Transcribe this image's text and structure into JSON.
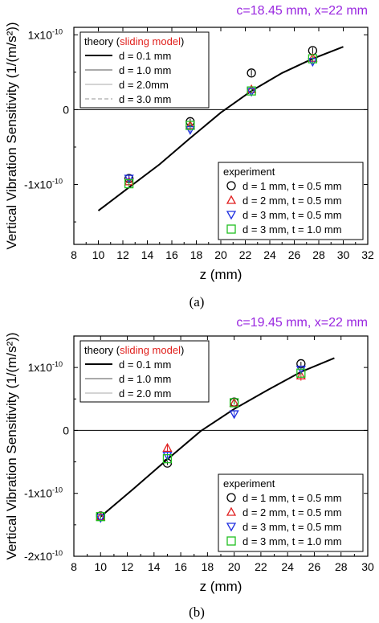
{
  "chart_data": [
    {
      "type": "line",
      "caption": "(a)",
      "condition": "c=18.45 mm, x=22 mm",
      "condition_color": "#9a28e0",
      "xlabel": "z (mm)",
      "ylabel": "Vertical Vibration Sensitivity (1/(m/s²))",
      "xlim": [
        8,
        32
      ],
      "ylim": [
        -1.8e-10,
        1.1e-10
      ],
      "xticks": [
        8,
        10,
        12,
        14,
        16,
        18,
        20,
        22,
        24,
        26,
        28,
        30,
        32
      ],
      "yticks": [
        {
          "value": 1e-10,
          "label": "1x10"
        },
        {
          "value": 0,
          "label": "0"
        },
        {
          "value": -1e-10,
          "label": "-1x10"
        }
      ],
      "theory_legend": {
        "title_prefix": "theory (",
        "title_highlight": "sliding model",
        "title_suffix": ")",
        "highlight_color": "#e0201c",
        "position": "top-left"
      },
      "theory_series": [
        {
          "name": "d = 0.1 mm",
          "color": "#000000",
          "dash": "none",
          "width": 2,
          "x": [
            10,
            12.5,
            15,
            17.5,
            20,
            22.5,
            25,
            27.5,
            30
          ],
          "y": [
            -1.35e-10,
            -1.04e-10,
            -7.3e-11,
            -3.8e-11,
            -4e-12,
            2.5e-11,
            4.9e-11,
            6.8e-11,
            8.4e-11
          ]
        },
        {
          "name": "d = 1.0 mm",
          "color": "#777777",
          "dash": "none",
          "width": 1.2,
          "x": [],
          "y": []
        },
        {
          "name": "d = 2.0mm",
          "color": "#bbbbbb",
          "dash": "none",
          "width": 1.2,
          "x": [],
          "y": []
        },
        {
          "name": "d = 3.0 mm",
          "color": "#aaaaaa",
          "dash": "5,3",
          "width": 1.2,
          "x": [],
          "y": []
        }
      ],
      "experiment_legend": {
        "title": "experiment",
        "position": "bottom-right"
      },
      "experiment_series": [
        {
          "name": "d = 1 mm, t = 0.5 mm",
          "marker": "circle",
          "color": "#000000",
          "x": [
            12.5,
            17.5,
            22.5,
            27.5
          ],
          "y": [
            -9.2e-11,
            -1.6e-11,
            4.9e-11,
            7.9e-11
          ],
          "err": [
            4e-12,
            4e-12,
            4e-12,
            4e-12
          ]
        },
        {
          "name": "d = 2 mm, t = 0.5 mm",
          "marker": "triangle-up",
          "color": "#e02020",
          "x": [
            12.5,
            17.5,
            22.5,
            27.5
          ],
          "y": [
            -9.6e-11,
            -2.1e-11,
            2.7e-11,
            6.9e-11
          ],
          "err": [
            3e-12,
            3e-12,
            3e-12,
            3e-12
          ]
        },
        {
          "name": "d = 3 mm, t = 0.5 mm",
          "marker": "triangle-down",
          "color": "#2030e0",
          "x": [
            12.5,
            17.5,
            22.5,
            27.5
          ],
          "y": [
            -9.2e-11,
            -2.7e-11,
            2.4e-11,
            6.4e-11
          ],
          "err": [
            3e-12,
            3e-12,
            3e-12,
            3e-12
          ]
        },
        {
          "name": "d = 3 mm, t = 1.0 mm",
          "marker": "square",
          "color": "#20c020",
          "x": [
            12.5,
            17.5,
            22.5,
            27.5
          ],
          "y": [
            -9.9e-11,
            -2.1e-11,
            2.5e-11,
            6.8e-11
          ],
          "err": [
            3e-12,
            3e-12,
            3e-12,
            3e-12
          ]
        }
      ]
    },
    {
      "type": "line",
      "caption": "(b)",
      "condition": "c=19.45 mm, x=22 mm",
      "condition_color": "#9a28e0",
      "xlabel": "z (mm)",
      "ylabel": "Vertical Vibration Sensitivity (1/(m/s²))",
      "xlim": [
        8,
        30
      ],
      "ylim": [
        -2e-10,
        1.5e-10
      ],
      "xticks": [
        8,
        10,
        12,
        14,
        16,
        18,
        20,
        22,
        24,
        26,
        28,
        30
      ],
      "yticks": [
        {
          "value": 1e-10,
          "label": "1x10"
        },
        {
          "value": 0,
          "label": "0"
        },
        {
          "value": -1e-10,
          "label": "-1x10"
        },
        {
          "value": -2e-10,
          "label": "-2x10"
        }
      ],
      "theory_legend": {
        "title_prefix": "theory (",
        "title_highlight": "sliding model",
        "title_suffix": ")",
        "highlight_color": "#e0201c",
        "position": "top-left"
      },
      "theory_series": [
        {
          "name": "d = 0.1 mm",
          "color": "#000000",
          "dash": "none",
          "width": 2,
          "x": [
            10,
            12.5,
            15,
            17.5,
            20,
            22.5,
            25,
            27.5
          ],
          "y": [
            -1.37e-10,
            -9.2e-11,
            -4.6e-11,
            -1e-12,
            3.4e-11,
            6.4e-11,
            9.3e-11,
            1.15e-10
          ]
        },
        {
          "name": "d = 1.0 mm",
          "color": "#777777",
          "dash": "none",
          "width": 1.2,
          "x": [],
          "y": []
        },
        {
          "name": "d = 2.0 mm",
          "color": "#bbbbbb",
          "dash": "none",
          "width": 1.2,
          "x": [],
          "y": []
        }
      ],
      "experiment_legend": {
        "title": "experiment",
        "position": "bottom-right"
      },
      "experiment_series": [
        {
          "name": "d = 1 mm, t = 0.5 mm",
          "marker": "circle",
          "color": "#000000",
          "x": [
            10,
            15,
            20,
            25
          ],
          "y": [
            -1.36e-10,
            -5.2e-11,
            4.5e-11,
            1.06e-10
          ],
          "err": [
            2e-12,
            3e-12,
            3e-12,
            3e-12
          ]
        },
        {
          "name": "d = 2 mm, t = 0.5 mm",
          "marker": "triangle-up",
          "color": "#e02020",
          "x": [
            10,
            15,
            20,
            25
          ],
          "y": [
            -1.37e-10,
            -2.8e-11,
            4.4e-11,
            8.7e-11
          ],
          "err": [
            3e-12,
            6e-12,
            3e-12,
            8e-12
          ]
        },
        {
          "name": "d = 3 mm, t = 0.5 mm",
          "marker": "triangle-down",
          "color": "#2030e0",
          "x": [
            10,
            15,
            20,
            25
          ],
          "y": [
            -1.39e-10,
            -4e-11,
            2.6e-11,
            9.7e-11
          ],
          "err": [
            3e-12,
            5e-12,
            5e-12,
            5e-12
          ]
        },
        {
          "name": "d = 3 mm, t = 1.0 mm",
          "marker": "square",
          "color": "#20c020",
          "x": [
            10,
            15,
            20,
            25
          ],
          "y": [
            -1.37e-10,
            -4.5e-11,
            4.4e-11,
            9.1e-11
          ],
          "err": [
            3e-12,
            3e-12,
            3e-12,
            3e-12
          ]
        }
      ]
    }
  ]
}
